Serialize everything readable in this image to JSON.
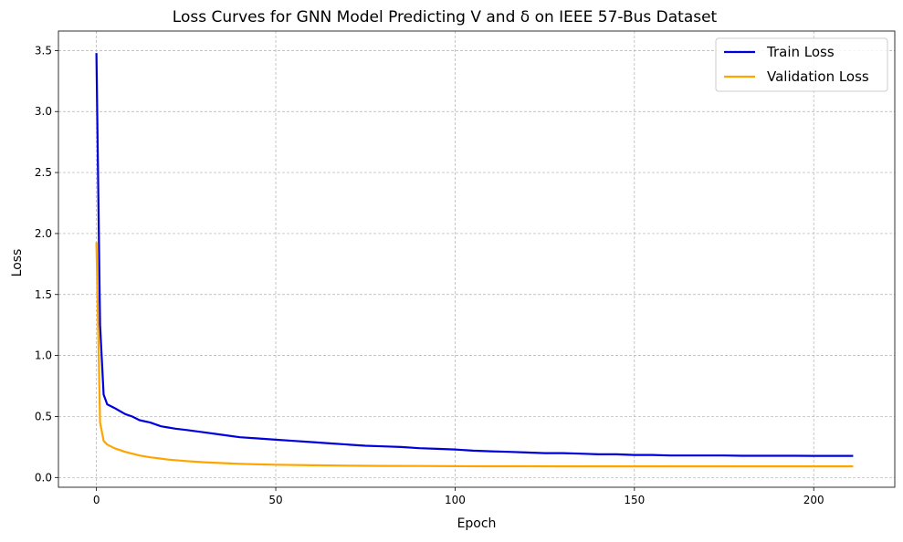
{
  "chart_data": {
    "type": "line",
    "title": "Loss Curves for GNN Model Predicting V and δ on IEEE 57-Bus Dataset",
    "xlabel": "Epoch",
    "ylabel": "Loss",
    "xlim": [
      -10.6,
      222.6
    ],
    "ylim": [
      -0.08,
      3.66
    ],
    "xticks": [
      0,
      50,
      100,
      150,
      200
    ],
    "xtick_labels": [
      "0",
      "50",
      "100",
      "150",
      "200"
    ],
    "yticks": [
      0.0,
      0.5,
      1.0,
      1.5,
      2.0,
      2.5,
      3.0,
      3.5
    ],
    "ytick_labels": [
      "0.0",
      "0.5",
      "1.0",
      "1.5",
      "2.0",
      "2.5",
      "3.0",
      "3.5"
    ],
    "grid": true,
    "legend_position": "top-right",
    "series": [
      {
        "name": "Train Loss",
        "color": "#0000dd",
        "points": [
          [
            0,
            3.48
          ],
          [
            1,
            1.25
          ],
          [
            2,
            0.68
          ],
          [
            3,
            0.6
          ],
          [
            5,
            0.57
          ],
          [
            8,
            0.52
          ],
          [
            10,
            0.5
          ],
          [
            12,
            0.47
          ],
          [
            15,
            0.45
          ],
          [
            18,
            0.42
          ],
          [
            20,
            0.41
          ],
          [
            22,
            0.4
          ],
          [
            25,
            0.39
          ],
          [
            30,
            0.37
          ],
          [
            35,
            0.35
          ],
          [
            40,
            0.33
          ],
          [
            45,
            0.32
          ],
          [
            50,
            0.31
          ],
          [
            55,
            0.3
          ],
          [
            60,
            0.29
          ],
          [
            65,
            0.28
          ],
          [
            70,
            0.27
          ],
          [
            75,
            0.26
          ],
          [
            80,
            0.255
          ],
          [
            85,
            0.25
          ],
          [
            90,
            0.24
          ],
          [
            95,
            0.235
          ],
          [
            100,
            0.23
          ],
          [
            105,
            0.22
          ],
          [
            110,
            0.215
          ],
          [
            115,
            0.21
          ],
          [
            120,
            0.205
          ],
          [
            125,
            0.2
          ],
          [
            130,
            0.2
          ],
          [
            135,
            0.195
          ],
          [
            140,
            0.19
          ],
          [
            145,
            0.19
          ],
          [
            150,
            0.185
          ],
          [
            155,
            0.185
          ],
          [
            160,
            0.18
          ],
          [
            165,
            0.18
          ],
          [
            170,
            0.18
          ],
          [
            175,
            0.18
          ],
          [
            180,
            0.178
          ],
          [
            185,
            0.178
          ],
          [
            190,
            0.178
          ],
          [
            195,
            0.178
          ],
          [
            200,
            0.177
          ],
          [
            205,
            0.177
          ],
          [
            211,
            0.177
          ]
        ]
      },
      {
        "name": "Validation Loss",
        "color": "#ffa500",
        "points": [
          [
            0,
            1.93
          ],
          [
            1,
            0.45
          ],
          [
            2,
            0.3
          ],
          [
            3,
            0.27
          ],
          [
            5,
            0.24
          ],
          [
            8,
            0.21
          ],
          [
            10,
            0.195
          ],
          [
            12,
            0.18
          ],
          [
            15,
            0.165
          ],
          [
            18,
            0.155
          ],
          [
            20,
            0.147
          ],
          [
            25,
            0.135
          ],
          [
            30,
            0.125
          ],
          [
            35,
            0.118
          ],
          [
            40,
            0.112
          ],
          [
            45,
            0.108
          ],
          [
            50,
            0.105
          ],
          [
            60,
            0.1
          ],
          [
            70,
            0.097
          ],
          [
            80,
            0.095
          ],
          [
            90,
            0.094
          ],
          [
            100,
            0.093
          ],
          [
            110,
            0.092
          ],
          [
            120,
            0.092
          ],
          [
            130,
            0.091
          ],
          [
            140,
            0.091
          ],
          [
            150,
            0.091
          ],
          [
            160,
            0.091
          ],
          [
            170,
            0.091
          ],
          [
            180,
            0.091
          ],
          [
            190,
            0.091
          ],
          [
            200,
            0.091
          ],
          [
            211,
            0.091
          ]
        ]
      }
    ]
  }
}
